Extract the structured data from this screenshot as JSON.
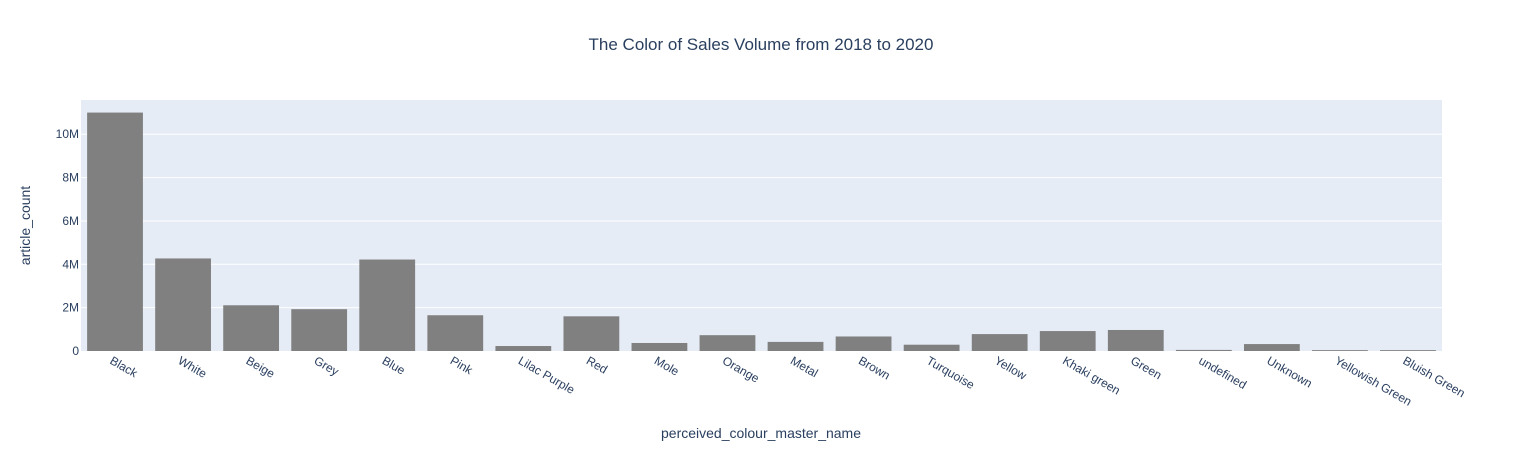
{
  "chart_data": {
    "type": "bar",
    "title": "The Color of Sales Volume from 2018 to 2020",
    "xlabel": "perceived_colour_master_name",
    "ylabel": "article_count",
    "categories": [
      "Black",
      "White",
      "Beige",
      "Grey",
      "Blue",
      "Pink",
      "Lilac Purple",
      "Red",
      "Mole",
      "Orange",
      "Metal",
      "Brown",
      "Turquoise",
      "Yellow",
      "Khaki green",
      "Green",
      "undefined",
      "Unknown",
      "Yellowish Green",
      "Bluish Green"
    ],
    "values": [
      11000000,
      4270000,
      2110000,
      1930000,
      4220000,
      1650000,
      230000,
      1600000,
      370000,
      730000,
      420000,
      670000,
      290000,
      780000,
      920000,
      970000,
      50000,
      320000,
      40000,
      40000
    ],
    "ylim": [
      0,
      11580000
    ],
    "yticks": [
      0,
      2000000,
      4000000,
      6000000,
      8000000,
      10000000
    ],
    "ytick_labels": [
      "0",
      "2M",
      "4M",
      "6M",
      "8M",
      "10M"
    ],
    "grid": true,
    "legend": "none",
    "colors": {
      "bar": "#808080",
      "plot_bg": "#e5ecf6",
      "grid": "#ffffff",
      "text": "#2a3f5f",
      "paper_bg": "#ffffff"
    }
  }
}
